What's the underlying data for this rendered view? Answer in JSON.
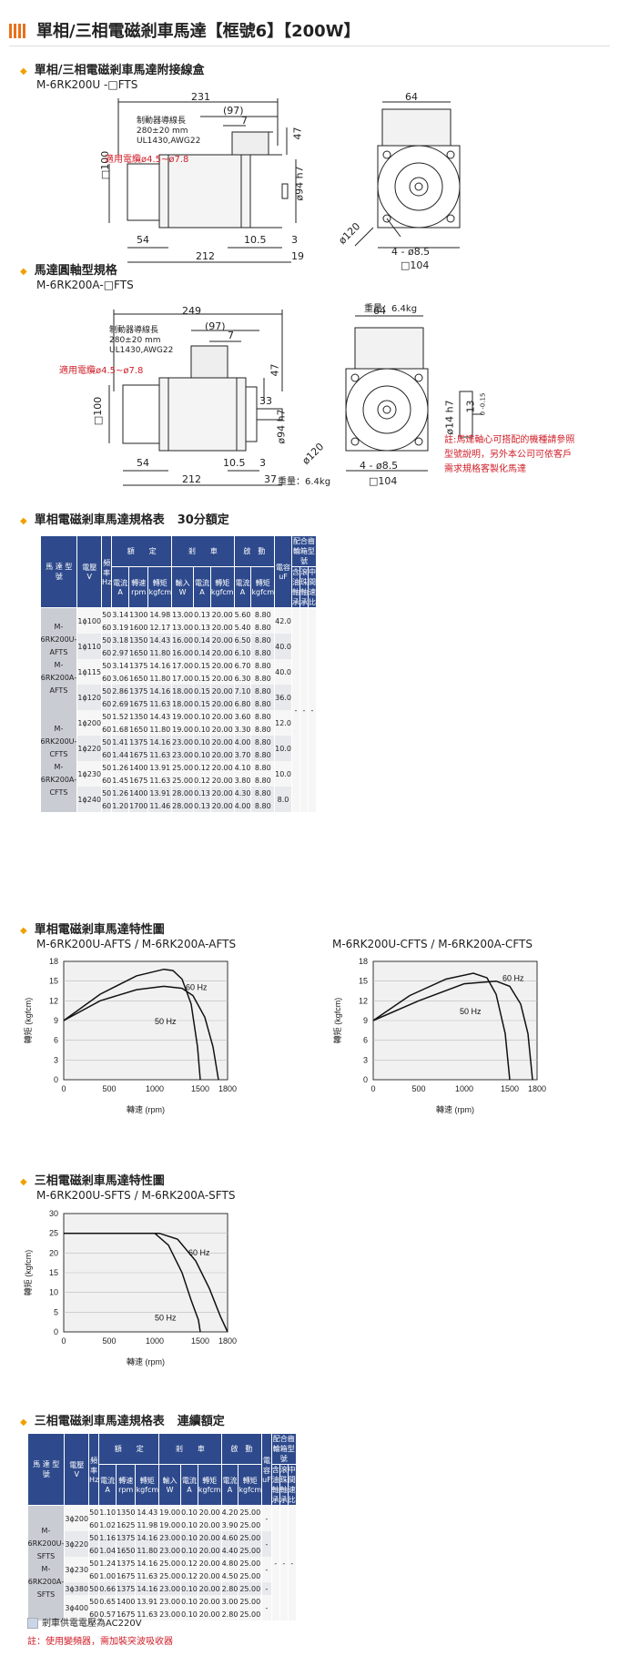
{
  "page_title": "單相/三相電磁剎車馬達【框號6】【200W】",
  "diagram1": {
    "heading": "單相/三相電磁剎車馬達附接線盒",
    "model": "M-6RK200U -□FTS",
    "dims": {
      "total": "231",
      "d97": "(97)",
      "d7": "7",
      "d47": "47",
      "d64": "64",
      "d100": "□100",
      "d94": "ø94 h7",
      "d120": "ø120",
      "d85": "4 - ø8.5",
      "d104": "□104",
      "d54": "54",
      "d105": "10.5",
      "d3": "3",
      "d212": "212",
      "d19": "19"
    },
    "cable_note1": "制動器導線長",
    "cable_note2": "280±20 mm",
    "cable_note3": "UL1430,AWG22",
    "cable_red": "適用電纜ø4.5~ø7.8"
  },
  "diagram2": {
    "heading": "馬達圓軸型規格",
    "model": "M-6RK200A-□FTS",
    "weight": "重量：6.4kg",
    "dims": {
      "total": "249",
      "d97": "(97)",
      "d7": "7",
      "d47": "47",
      "d33": "33",
      "d64": "64",
      "d100": "□100",
      "d94": "ø94 h7",
      "d120": "ø120",
      "d85": "4 - ø8.5",
      "d104": "□104",
      "d54": "54",
      "d105": "10.5",
      "d3": "3",
      "d212": "212",
      "d37": "37",
      "d14": "ø14 h7",
      "d13": "13",
      "d13s": "0 -0.15"
    },
    "cable_note1": "制動器導線長",
    "cable_note2": "280±20 mm",
    "cable_note3": "UL1430,AWG22",
    "cable_red": "適用電纜ø4.5~ø7.8",
    "note_red": [
      "註:馬達軸心可搭配的機種請參照",
      "型號說明，另外本公司可依客戶",
      "需求規格客製化馬達"
    ]
  },
  "table1": {
    "heading": "單相電磁剎車馬達規格表",
    "subheading": "30分額定",
    "headers": {
      "model": "馬 達 型 號",
      "voltage": "電壓",
      "voltage_u": "V",
      "freq": "頻率",
      "freq_u": "Hz",
      "rated": "額　　定",
      "brake": "剎　　車",
      "start": "啟　動",
      "cap": "電容",
      "cap_u": "uF",
      "gear": "配合齒輪箱型號",
      "current": "電流",
      "current_u": "A",
      "speed": "轉速",
      "speed_u": "rpm",
      "torque": "轉矩",
      "torque_u": "kgfcm",
      "input": "輸入",
      "input_u": "W",
      "bcur": "電流",
      "bcur_u": "A",
      "btor": "轉矩",
      "btor_u": "kgfcm",
      "scur": "電流",
      "scur_u": "A",
      "stor": "轉矩",
      "stor_u": "kgfcm",
      "g1": "含油軸承",
      "g2": "滾珠軸承",
      "g3": "中間速比"
    },
    "groups": [
      {
        "model": [
          "M-6RK200U-AFTS",
          "M-6RK200A-AFTS"
        ],
        "rows": [
          {
            "v": "1ϕ100",
            "cap": "42.0",
            "r": [
              [
                "50",
                "3.14",
                "1300",
                "14.98",
                "13.00",
                "0.13",
                "20.00",
                "5.60",
                "8.80"
              ],
              [
                "60",
                "3.19",
                "1600",
                "12.17",
                "13.00",
                "0.13",
                "20.00",
                "5.40",
                "8.80"
              ]
            ]
          },
          {
            "v": "1ϕ110",
            "cap": "40.0",
            "r": [
              [
                "50",
                "3.18",
                "1350",
                "14.43",
                "16.00",
                "0.14",
                "20.00",
                "6.50",
                "8.80"
              ],
              [
                "60",
                "2.97",
                "1650",
                "11.80",
                "16.00",
                "0.14",
                "20.00",
                "6.10",
                "8.80"
              ]
            ]
          },
          {
            "v": "1ϕ115",
            "cap": "40.0",
            "r": [
              [
                "50",
                "3.14",
                "1375",
                "14.16",
                "17.00",
                "0.15",
                "20.00",
                "6.70",
                "8.80"
              ],
              [
                "60",
                "3.06",
                "1650",
                "11.80",
                "17.00",
                "0.15",
                "20.00",
                "6.30",
                "8.80"
              ]
            ]
          },
          {
            "v": "1ϕ120",
            "cap": "36.0",
            "r": [
              [
                "50",
                "2.86",
                "1375",
                "14.16",
                "18.00",
                "0.15",
                "20.00",
                "7.10",
                "8.80"
              ],
              [
                "60",
                "2.69",
                "1675",
                "11.63",
                "18.00",
                "0.15",
                "20.00",
                "6.80",
                "8.80"
              ]
            ]
          }
        ]
      },
      {
        "model": [
          "M-6RK200U-CFTS",
          "M-6RK200A-CFTS"
        ],
        "rows": [
          {
            "v": "1ϕ200",
            "cap": "12.0",
            "r": [
              [
                "50",
                "1.52",
                "1350",
                "14.43",
                "19.00",
                "0.10",
                "20.00",
                "3.60",
                "8.80"
              ],
              [
                "60",
                "1.68",
                "1650",
                "11.80",
                "19.00",
                "0.10",
                "20.00",
                "3.30",
                "8.80"
              ]
            ]
          },
          {
            "v": "1ϕ220",
            "cap": "10.0",
            "r": [
              [
                "50",
                "1.41",
                "1375",
                "14.16",
                "23.00",
                "0.10",
                "20.00",
                "4.00",
                "8.80"
              ],
              [
                "60",
                "1.44",
                "1675",
                "11.63",
                "23.00",
                "0.10",
                "20.00",
                "3.70",
                "8.80"
              ]
            ]
          },
          {
            "v": "1ϕ230",
            "cap": "10.0",
            "r": [
              [
                "50",
                "1.26",
                "1400",
                "13.91",
                "25.00",
                "0.12",
                "20.00",
                "4.10",
                "8.80"
              ],
              [
                "60",
                "1.45",
                "1675",
                "11.63",
                "25.00",
                "0.12",
                "20.00",
                "3.80",
                "8.80"
              ]
            ]
          },
          {
            "v": "1ϕ240",
            "cap": "8.0",
            "r": [
              [
                "50",
                "1.26",
                "1400",
                "13.91",
                "28.00",
                "0.13",
                "20.00",
                "4.30",
                "8.80"
              ],
              [
                "60",
                "1.20",
                "1700",
                "11.46",
                "28.00",
                "0.13",
                "20.00",
                "4.00",
                "8.80"
              ]
            ]
          }
        ]
      }
    ],
    "gear_vals": [
      "-",
      "-",
      "-"
    ]
  },
  "chart_section1": {
    "heading": "單相電磁剎車馬達特性圖"
  },
  "chart_section2": {
    "heading": "三相電磁剎車馬達特性圖"
  },
  "chart_data": [
    {
      "type": "line",
      "title": "M-6RK200U-AFTS / M-6RK200A-AFTS",
      "xlabel": "轉速 (rpm)",
      "ylabel": "轉矩 (kgfcm)",
      "xlim": [
        0,
        1800
      ],
      "ylim": [
        0,
        18
      ],
      "xticks": [
        0,
        500,
        1000,
        1500,
        1800
      ],
      "yticks": [
        0,
        3,
        6,
        9,
        12,
        15,
        18
      ],
      "series": [
        {
          "name": "60 Hz",
          "x": [
            0,
            400,
            800,
            1100,
            1300,
            1420,
            1550,
            1640,
            1700
          ],
          "y": [
            9,
            12,
            13.7,
            14.2,
            13.9,
            12.8,
            9.5,
            5,
            0
          ]
        },
        {
          "name": "50 Hz",
          "x": [
            0,
            400,
            800,
            1100,
            1200,
            1300,
            1400,
            1470,
            1500
          ],
          "y": [
            9,
            13,
            15.8,
            16.8,
            16.6,
            15.3,
            11.5,
            5,
            0
          ]
        }
      ]
    },
    {
      "type": "line",
      "title": "M-6RK200U-CFTS / M-6RK200A-CFTS",
      "xlabel": "轉速 (rpm)",
      "ylabel": "轉矩 (kgfcm)",
      "xlim": [
        0,
        1800
      ],
      "ylim": [
        0,
        18
      ],
      "xticks": [
        0,
        500,
        1000,
        1500,
        1800
      ],
      "yticks": [
        0,
        3,
        6,
        9,
        12,
        15,
        18
      ],
      "series": [
        {
          "name": "60 Hz",
          "x": [
            0,
            500,
            1000,
            1350,
            1500,
            1620,
            1700,
            1750
          ],
          "y": [
            9,
            12,
            14.6,
            15,
            14.2,
            11.5,
            7,
            0
          ]
        },
        {
          "name": "50 Hz",
          "x": [
            0,
            400,
            800,
            1100,
            1250,
            1350,
            1450,
            1500
          ],
          "y": [
            9,
            12.8,
            15.3,
            16.2,
            15.5,
            13,
            7,
            0
          ]
        }
      ]
    },
    {
      "type": "line",
      "title": "M-6RK200U-SFTS / M-6RK200A-SFTS",
      "xlabel": "轉速 (rpm)",
      "ylabel": "轉矩 (kgfcm)",
      "xlim": [
        0,
        1800
      ],
      "ylim": [
        0,
        30
      ],
      "xticks": [
        0,
        500,
        1000,
        1500,
        1800
      ],
      "yticks": [
        0,
        5,
        10,
        15,
        20,
        25,
        30
      ],
      "series": [
        {
          "name": "60 Hz",
          "x": [
            0,
            1050,
            1250,
            1450,
            1600,
            1720,
            1800
          ],
          "y": [
            25,
            25,
            23.5,
            18,
            11,
            4,
            0
          ]
        },
        {
          "name": "50 Hz",
          "x": [
            0,
            1000,
            1150,
            1300,
            1400,
            1480,
            1500
          ],
          "y": [
            25,
            25,
            22,
            15,
            8,
            3,
            0
          ]
        }
      ]
    }
  ],
  "table2": {
    "heading": "三相電磁剎車馬達規格表",
    "subheading": "連續額定",
    "groups": [
      {
        "model": [
          "M-6RK200U-SFTS",
          "M-6RK200A-SFTS"
        ],
        "rows": [
          {
            "v": "3ϕ200",
            "cap": "-",
            "r": [
              [
                "50",
                "1.10",
                "1350",
                "14.43",
                "19.00",
                "0.10",
                "20.00",
                "4.20",
                "25.00"
              ],
              [
                "60",
                "1.02",
                "1625",
                "11.98",
                "19.00",
                "0.10",
                "20.00",
                "3.90",
                "25.00"
              ]
            ]
          },
          {
            "v": "3ϕ220",
            "cap": "-",
            "r": [
              [
                "50",
                "1.16",
                "1375",
                "14.16",
                "23.00",
                "0.10",
                "20.00",
                "4.60",
                "25.00"
              ],
              [
                "60",
                "1.04",
                "1650",
                "11.80",
                "23.00",
                "0.10",
                "20.00",
                "4.40",
                "25.00"
              ]
            ]
          },
          {
            "v": "3ϕ230",
            "cap": "-",
            "r": [
              [
                "50",
                "1.24",
                "1375",
                "14.16",
                "25.00",
                "0.12",
                "20.00",
                "4.80",
                "25.00"
              ],
              [
                "60",
                "1.00",
                "1675",
                "11.63",
                "25.00",
                "0.12",
                "20.00",
                "4.50",
                "25.00"
              ]
            ]
          },
          {
            "v": "3ϕ380",
            "cap": "-",
            "r": [
              [
                "50",
                "0.66",
                "1375",
                "14.16",
                "23.00",
                "0.10",
                "20.00",
                "2.80",
                "25.00"
              ]
            ]
          },
          {
            "v": "3ϕ400",
            "cap": "-",
            "r": [
              [
                "50",
                "0.65",
                "1400",
                "13.91",
                "23.00",
                "0.10",
                "20.00",
                "3.00",
                "25.00"
              ],
              [
                "60",
                "0.57",
                "1675",
                "11.63",
                "23.00",
                "0.10",
                "20.00",
                "2.80",
                "25.00"
              ]
            ]
          }
        ]
      }
    ],
    "gear_vals": [
      "-",
      "-",
      "-"
    ],
    "legend": "剎車供電電壓為AC220V",
    "note": "註：使用變頻器，需加裝突波吸收器"
  }
}
